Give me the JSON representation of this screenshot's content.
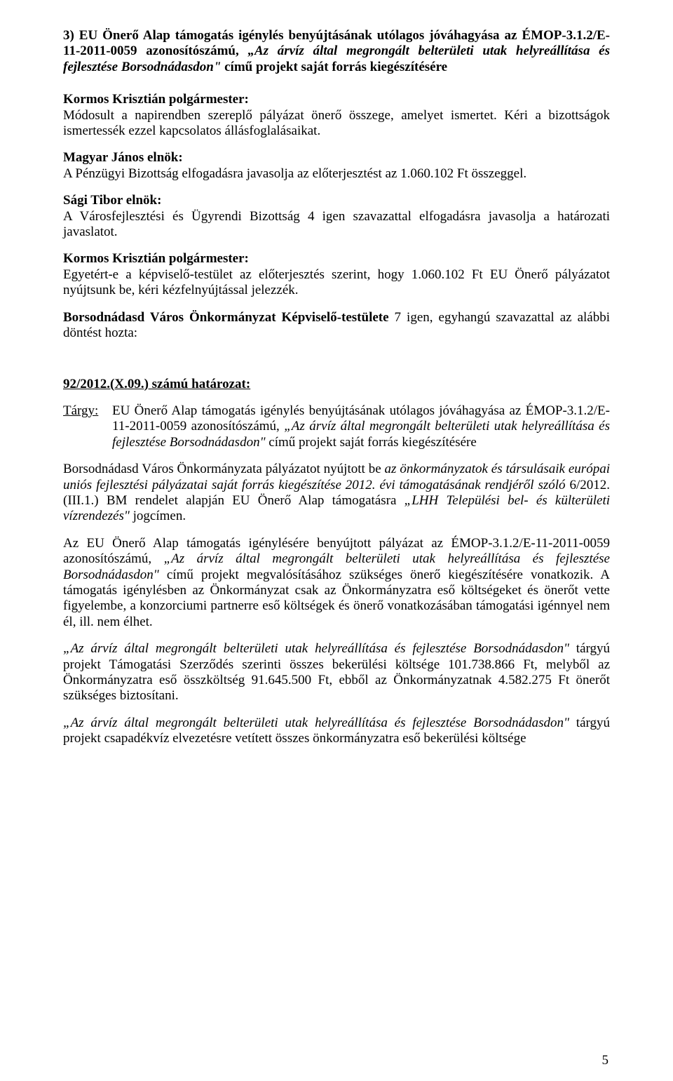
{
  "heading3": {
    "prefix": "3) EU Önerő Alap támogatás igénylés benyújtásának utólagos jóváhagyása az ÉMOP-3.1.2/E-11-2011-0059 azonosítószámú, ",
    "italic": "„Az árvíz által megrongált belterületi utak helyreállítása és fejlesztése Borsodnádasdon\"",
    "suffix": " című projekt saját forrás kiegészítésére"
  },
  "kormos1": {
    "name": "Kormos Krisztián polgármester:",
    "text": "Módosult a napirendben szereplő pályázat önerő összege, amelyet ismertet. Kéri a bizottságok ismertessék ezzel kapcsolatos állásfoglalásaikat."
  },
  "magyar": {
    "name": "Magyar János elnök:",
    "text": "A Pénzügyi Bizottság elfogadásra javasolja az előterjesztést az 1.060.102 Ft összeggel."
  },
  "sagi": {
    "name": "Sági Tibor elnök:",
    "text": "A Városfejlesztési és Ügyrendi Bizottság 4 igen szavazattal elfogadásra javasolja a határozati javaslatot."
  },
  "kormos2": {
    "name": "Kormos Krisztián polgármester:",
    "text": "Egyetért-e a képviselő-testület az előterjesztés szerint, hogy 1.060.102 Ft EU Önerő pályázatot nyújtsunk be, kéri kézfelnyújtással jelezzék."
  },
  "vote": {
    "bold": "Borsodnádasd Város Önkormányzat Képviselő-testülete",
    "rest": " 7 igen, egyhangú szavazattal az alábbi döntést hozta:"
  },
  "resolution_number": "92/2012.(X.09.) számú határozat:",
  "targy": {
    "label": "Tárgy:",
    "prefix": "EU Önerő Alap támogatás igénylés benyújtásának utólagos jóváhagyása az ÉMOP-3.1.2/E-11-2011-0059 azonosítószámú, ",
    "italic": "„Az árvíz által megrongált belterületi utak helyreállítása és fejlesztése Borsodnádasdon\"",
    "suffix": " című projekt saját forrás kiegészítésére"
  },
  "body1": {
    "pre": "Borsodnádasd Város Önkormányzata pályázatot nyújtott be ",
    "i1": "az önkormányzatok és társulásaik európai uniós fejlesztési pályázatai saját forrás kiegészítése 2012. évi támogatásának rendjéről szóló",
    "mid1": " 6/2012.(III.1.) BM rendelet alapján EU Önerő Alap támogatásra ",
    "i2": "„LHH Települési bel- és külterületi vízrendezés\"",
    "post": " jogcímen."
  },
  "body2": {
    "pre": "Az EU Önerő Alap támogatás igénylésére benyújtott pályázat az ÉMOP-3.1.2/E-11-2011-0059 azonosítószámú, ",
    "i1": "„Az árvíz által megrongált belterületi utak helyreállítása és fejlesztése Borsodnádasdon\"",
    "post": " című projekt megvalósításához szükséges önerő kiegészítésére vonatkozik. A támogatás igénylésben az Önkormányzat csak az Önkormányzatra eső költségeket és önerőt vette figyelembe, a konzorciumi partnerre eső költségek és önerő vonatkozásában támogatási igénnyel nem él, ill. nem élhet."
  },
  "body3": {
    "i1": "„Az árvíz által megrongált belterületi utak helyreállítása és fejlesztése Borsodnádasdon\"",
    "post": " tárgyú projekt Támogatási Szerződés szerinti összes bekerülési költsége 101.738.866 Ft, melyből az Önkormányzatra eső összköltség 91.645.500 Ft, ebből az Önkormányzatnak 4.582.275 Ft önerőt szükséges biztosítani."
  },
  "body4": {
    "i1": "„Az árvíz által megrongált belterületi utak helyreállítása és fejlesztése Borsodnádasdon\"",
    "post": " tárgyú projekt csapadékvíz elvezetésre vetített összes önkormányzatra eső bekerülési költsége"
  },
  "page_number": "5"
}
